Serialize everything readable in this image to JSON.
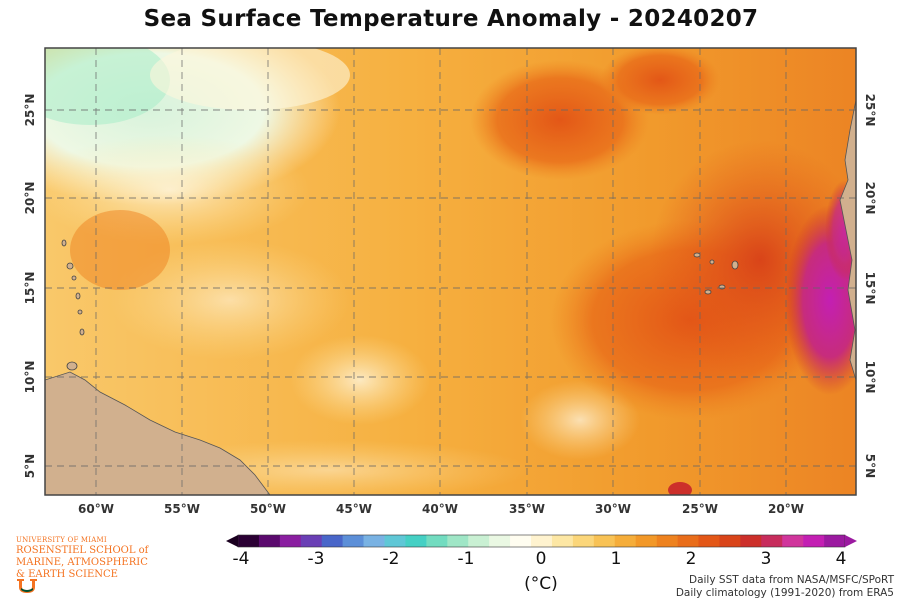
{
  "title": "Sea Surface Temperature Anomaly - 20240207",
  "map": {
    "x_ticks": [
      "60°W",
      "55°W",
      "50°W",
      "45°W",
      "40°W",
      "35°W",
      "30°W",
      "25°W",
      "20°W"
    ],
    "y_ticks_left": [
      "25°N",
      "20°N",
      "15°N",
      "10°N",
      "5°N"
    ],
    "y_ticks_right": [
      "25°N",
      "20°N",
      "15°N",
      "10°N",
      "5°N"
    ],
    "lon_range": [
      -63,
      -16
    ],
    "lat_range": [
      3,
      28
    ],
    "gridlines": "dashed"
  },
  "colorbar": {
    "ticks": [
      "-4",
      "-3",
      "-2",
      "-1",
      "0",
      "1",
      "2",
      "3",
      "4"
    ],
    "unit": "(°C)",
    "range": [
      -4,
      4
    ],
    "colors": [
      "#2b0034",
      "#5b0a6e",
      "#8a1ea0",
      "#6a3fb5",
      "#4966c9",
      "#5c8fd8",
      "#79b2e3",
      "#5fc7d6",
      "#45d0c4",
      "#72dcc0",
      "#9fe6c6",
      "#c9f0d3",
      "#eaf8e3",
      "#fffdf0",
      "#fff3cf",
      "#fde7a4",
      "#fbd67a",
      "#f8c255",
      "#f5ad3a",
      "#f29828",
      "#ee821f",
      "#e96d1a",
      "#e35717",
      "#d94419",
      "#cc2f2a",
      "#c72c5c",
      "#d0359c",
      "#c31fb3",
      "#9b1aa0"
    ]
  },
  "credits": {
    "line1": "Daily SST data from NASA/MSFC/SPoRT",
    "line2": "Daily climatology (1991-2020) from ERA5"
  },
  "logo": {
    "university": "UNIVERSITY OF MIAMI",
    "school_line1": "ROSENSTIEL SCHOOL of",
    "school_line2": "MARINE, ATMOSPHERIC",
    "school_line3": "& EARTH SCIENCE"
  }
}
